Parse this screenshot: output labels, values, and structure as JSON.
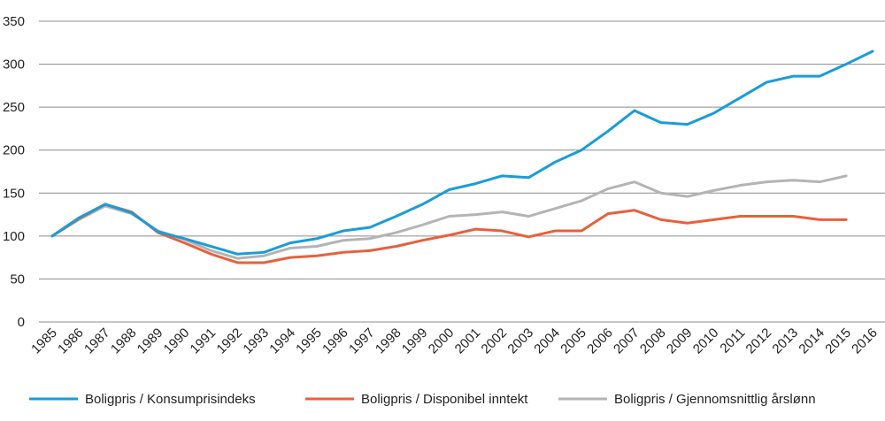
{
  "chart_data": {
    "type": "line",
    "title": "",
    "xlabel": "",
    "ylabel": "",
    "ylim": [
      0,
      350
    ],
    "yticks": [
      0,
      50,
      100,
      150,
      200,
      250,
      300,
      350
    ],
    "grid": true,
    "legend_position": "bottom",
    "x": [
      "1985",
      "1986",
      "1987",
      "1988",
      "1989",
      "1990",
      "1991",
      "1992",
      "1993",
      "1994",
      "1995",
      "1996",
      "1997",
      "1998",
      "1999",
      "2000",
      "2001",
      "2002",
      "2003",
      "2004",
      "2005",
      "2006",
      "2007",
      "2008",
      "2009",
      "2010",
      "2011",
      "2012",
      "2013",
      "2014",
      "2015",
      "2016"
    ],
    "series": [
      {
        "name": "Boligpris / Konsumprisindeks",
        "color": "#1a9cd8",
        "values": [
          100,
          121,
          137,
          127,
          105,
          97,
          88,
          79,
          81,
          92,
          97,
          106,
          110,
          123,
          137,
          154,
          161,
          170,
          168,
          186,
          200,
          222,
          246,
          232,
          230,
          243,
          261,
          279,
          286,
          286,
          300,
          315
        ]
      },
      {
        "name": "Boligpris / Disponibel inntekt",
        "color": "#e8603c",
        "values": [
          100,
          120,
          137,
          128,
          104,
          92,
          79,
          69,
          69,
          75,
          77,
          81,
          83,
          88,
          95,
          101,
          108,
          106,
          99,
          106,
          106,
          126,
          130,
          119,
          115,
          119,
          123,
          123,
          123,
          119,
          119,
          null
        ]
      },
      {
        "name": "Boligpris / Gjennomsnittlig årslønn",
        "color": "#b4b4b4",
        "values": [
          100,
          119,
          135,
          126,
          106,
          96,
          83,
          74,
          77,
          86,
          88,
          95,
          97,
          104,
          113,
          123,
          125,
          128,
          123,
          132,
          141,
          155,
          163,
          150,
          146,
          153,
          159,
          163,
          165,
          163,
          170,
          null
        ]
      }
    ]
  }
}
